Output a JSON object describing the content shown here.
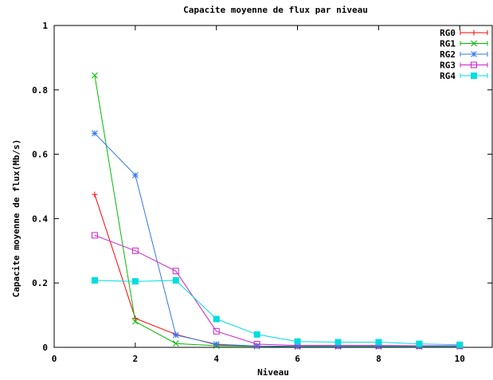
{
  "chart_data": {
    "type": "line",
    "title": "Capacite moyenne de flux par niveau",
    "xlabel": "Niveau",
    "ylabel": "Capacite moyenne de flux(Mb/s)",
    "xlim": [
      0,
      10.8
    ],
    "ylim": [
      0,
      1
    ],
    "xticks": [
      0,
      2,
      4,
      6,
      8,
      10
    ],
    "yticks": [
      0,
      0.2,
      0.4,
      0.6,
      0.8,
      1
    ],
    "xtick_labels": [
      "0",
      "2",
      "4",
      "6",
      "8",
      "10"
    ],
    "ytick_labels": [
      "0",
      "0.2",
      "0.4",
      "0.6",
      "0.8",
      "1"
    ],
    "grid": false,
    "legend_position": "top-right",
    "series": [
      {
        "name": "RG0",
        "color": "#ff0000",
        "marker": "plus",
        "x": [
          1,
          2,
          3,
          4,
          5,
          6,
          7,
          8,
          9,
          10
        ],
        "y": [
          0.475,
          0.09,
          0.04,
          0.008,
          0.004,
          0.003,
          0.003,
          0.003,
          0.003,
          0.003
        ]
      },
      {
        "name": "RG1",
        "color": "#00bb00",
        "marker": "cross",
        "x": [
          1,
          2,
          3,
          4,
          5,
          6,
          7,
          8,
          9,
          10
        ],
        "y": [
          0.845,
          0.08,
          0.012,
          0.005,
          0.003,
          0.002,
          0.002,
          0.002,
          0.002,
          0.002
        ]
      },
      {
        "name": "RG2",
        "color": "#3377ee",
        "marker": "star",
        "x": [
          1,
          2,
          3,
          4,
          5,
          6,
          7,
          8,
          9,
          10
        ],
        "y": [
          0.665,
          0.535,
          0.038,
          0.01,
          0.004,
          0.003,
          0.003,
          0.003,
          0.003,
          0.003
        ]
      },
      {
        "name": "RG3",
        "color": "#cc22cc",
        "marker": "square-open",
        "x": [
          1,
          2,
          3,
          4,
          5,
          6,
          7,
          8,
          9,
          10
        ],
        "y": [
          0.348,
          0.3,
          0.237,
          0.05,
          0.01,
          0.006,
          0.006,
          0.006,
          0.005,
          0.005
        ]
      },
      {
        "name": "RG4",
        "color": "#00dddd",
        "marker": "square-filled",
        "x": [
          1,
          2,
          3,
          4,
          5,
          6,
          7,
          8,
          9,
          10
        ],
        "y": [
          0.208,
          0.205,
          0.208,
          0.088,
          0.04,
          0.018,
          0.016,
          0.016,
          0.011,
          0.008
        ]
      }
    ]
  }
}
